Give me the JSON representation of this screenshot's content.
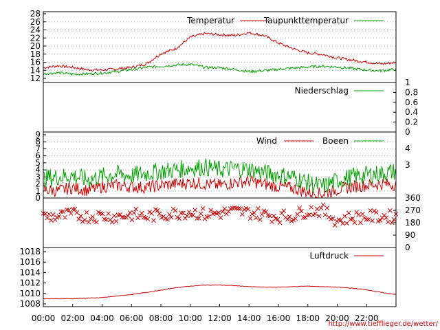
{
  "credit": "http://www.tiefflieger.de/wetter/",
  "colors": {
    "red": "#cc0000",
    "green": "#00a000",
    "grid": "#a0a0a0"
  },
  "x_ticks": [
    "00:00",
    "02:00",
    "04:00",
    "06:00",
    "08:00",
    "10:00",
    "12:00",
    "14:00",
    "16:00",
    "18:00",
    "20:00",
    "22:00"
  ],
  "chart_data": [
    {
      "type": "line",
      "title": "",
      "x": [
        "00:00",
        "01:00",
        "02:00",
        "03:00",
        "04:00",
        "05:00",
        "06:00",
        "07:00",
        "08:00",
        "09:00",
        "10:00",
        "11:00",
        "12:00",
        "13:00",
        "14:00",
        "15:00",
        "16:00",
        "17:00",
        "18:00",
        "19:00",
        "20:00",
        "21:00",
        "22:00",
        "23:00",
        "24:00"
      ],
      "ylim": [
        11,
        28
      ],
      "yticks": [
        "12",
        "14",
        "16",
        "18",
        "20",
        "22",
        "24",
        "26",
        "28"
      ],
      "grid": true,
      "legend": "top-right",
      "series": [
        {
          "name": "Temperatur",
          "color": "#cc0000",
          "values": [
            13.8,
            14.3,
            13.9,
            13.3,
            13.2,
            13.5,
            13.9,
            14.8,
            17.5,
            18.8,
            21.8,
            22.8,
            22.5,
            22.3,
            23.0,
            22.3,
            20.3,
            18.8,
            17.7,
            17.3,
            16.4,
            15.8,
            15.3,
            14.8,
            15.2
          ]
        },
        {
          "name": "Taupunkttemperatur",
          "color": "#00a000",
          "values": [
            12.2,
            12.5,
            12.1,
            12.2,
            12.4,
            12.8,
            13.3,
            13.9,
            14.2,
            14.5,
            14.7,
            13.9,
            13.8,
            13.4,
            12.8,
            13.0,
            13.4,
            13.7,
            14.0,
            14.2,
            14.0,
            13.6,
            13.2,
            13.0,
            13.4
          ]
        }
      ]
    },
    {
      "type": "line",
      "title": "",
      "x": [
        "00:00",
        "24:00"
      ],
      "ylim": [
        0,
        1
      ],
      "yticks": [
        "0",
        "0.2",
        "0.4",
        "0.6",
        "0.8",
        "1"
      ],
      "grid": false,
      "legend": "top-right",
      "series": [
        {
          "name": "Niederschlag",
          "color": "#00a000",
          "values": [
            0,
            0
          ]
        }
      ]
    },
    {
      "type": "line",
      "title": "",
      "x": [
        "00:00",
        "01:00",
        "02:00",
        "03:00",
        "04:00",
        "05:00",
        "06:00",
        "07:00",
        "08:00",
        "09:00",
        "10:00",
        "11:00",
        "12:00",
        "13:00",
        "14:00",
        "15:00",
        "16:00",
        "17:00",
        "18:00",
        "19:00",
        "20:00",
        "21:00",
        "22:00",
        "23:00",
        "24:00"
      ],
      "ylim": [
        0,
        9
      ],
      "yticks": [
        "0",
        "1",
        "2",
        "3",
        "4",
        "5",
        "6",
        "7",
        "8",
        "9"
      ],
      "y2ticks": [
        "3",
        "4"
      ],
      "grid": true,
      "legend": "top-right",
      "series": [
        {
          "name": "Wind",
          "color": "#cc0000",
          "values": [
            1.2,
            1.0,
            1.5,
            1.1,
            1.6,
            1.8,
            1.6,
            1.5,
            1.8,
            2.0,
            2.2,
            2.0,
            1.8,
            2.2,
            2.4,
            2.0,
            1.6,
            1.4,
            0.8,
            0.6,
            1.2,
            1.6,
            1.8,
            2.0,
            1.9
          ]
        },
        {
          "name": "Boeen",
          "color": "#00a000",
          "values": [
            2.8,
            3.0,
            3.2,
            2.6,
            3.1,
            3.4,
            3.2,
            3.5,
            3.8,
            4.0,
            4.3,
            4.4,
            4.0,
            4.2,
            4.1,
            3.6,
            3.3,
            3.0,
            2.2,
            1.6,
            2.5,
            3.0,
            3.3,
            3.5,
            3.8
          ]
        }
      ]
    },
    {
      "type": "scatter",
      "title": "",
      "x": [
        "00:00",
        "01:00",
        "02:00",
        "03:00",
        "04:00",
        "05:00",
        "06:00",
        "07:00",
        "08:00",
        "09:00",
        "10:00",
        "11:00",
        "12:00",
        "13:00",
        "14:00",
        "15:00",
        "16:00",
        "17:00",
        "18:00",
        "19:00",
        "20:00",
        "21:00",
        "22:00",
        "23:00",
        "24:00"
      ],
      "ylim": [
        0,
        360
      ],
      "yticks": [
        "0",
        "90",
        "180",
        "270",
        "360"
      ],
      "grid": false,
      "series": [
        {
          "name": "",
          "color": "#cc0000",
          "values": [
            225,
            225,
            240,
            225,
            230,
            225,
            240,
            225,
            240,
            250,
            260,
            240,
            250,
            260,
            255,
            240,
            225,
            230,
            270,
            270,
            195,
            220,
            225,
            225,
            225
          ]
        }
      ]
    },
    {
      "type": "line",
      "title": "",
      "x": [
        "00:00",
        "01:00",
        "02:00",
        "03:00",
        "04:00",
        "05:00",
        "06:00",
        "07:00",
        "08:00",
        "09:00",
        "10:00",
        "11:00",
        "12:00",
        "13:00",
        "14:00",
        "15:00",
        "16:00",
        "17:00",
        "18:00",
        "19:00",
        "20:00",
        "21:00",
        "22:00",
        "23:00",
        "24:00"
      ],
      "ylim": [
        1008,
        1018
      ],
      "yticks": [
        "1008",
        "1010",
        "1012",
        "1014",
        "1016",
        "1018"
      ],
      "grid": false,
      "legend": "top-right",
      "series": [
        {
          "name": "Luftdruck",
          "color": "#cc0000",
          "values": [
            1009.0,
            1009.0,
            1009.0,
            1009.1,
            1009.2,
            1009.5,
            1009.8,
            1010.2,
            1010.6,
            1011.1,
            1011.4,
            1011.6,
            1011.6,
            1011.5,
            1011.3,
            1011.2,
            1011.2,
            1011.3,
            1011.4,
            1011.3,
            1011.2,
            1011.0,
            1010.7,
            1010.2,
            1009.8
          ]
        }
      ]
    }
  ]
}
